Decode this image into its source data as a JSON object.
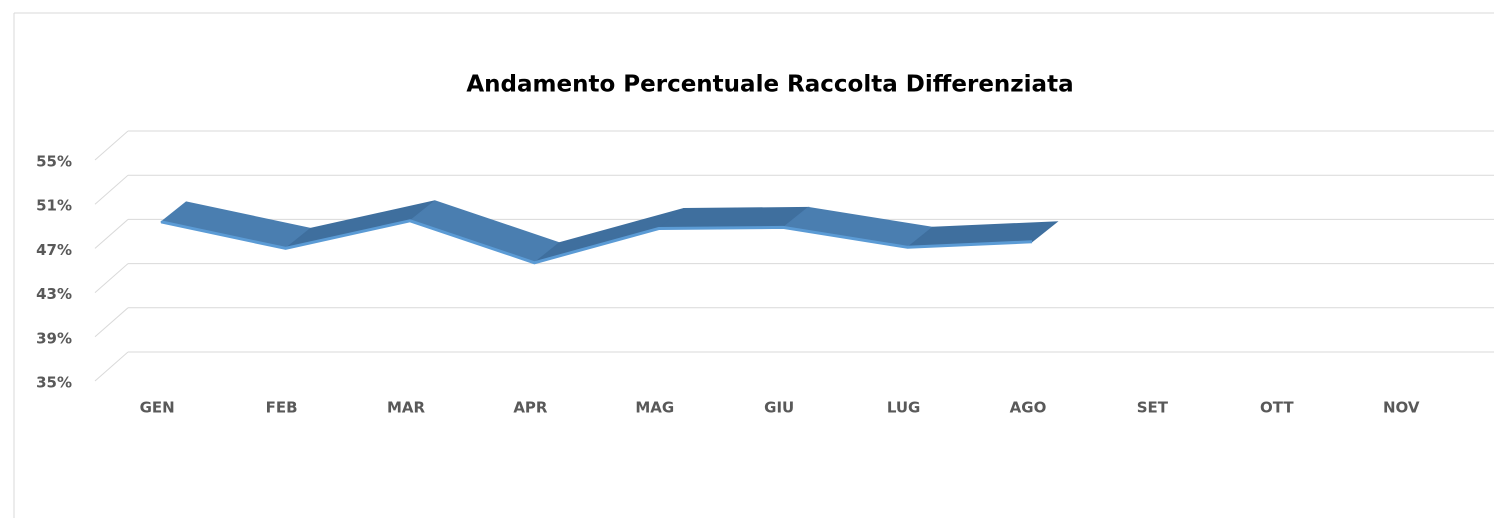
{
  "chart_data": {
    "type": "line3d",
    "title": "Andamento Percentuale Raccolta Differenziata",
    "categories": [
      "GEN",
      "FEB",
      "MAR",
      "APR",
      "MAG",
      "GIU",
      "LUG",
      "AGO",
      "SET",
      "OTT",
      "NOV"
    ],
    "values": [
      49.4,
      47.0,
      49.5,
      45.7,
      48.8,
      48.9,
      47.1,
      47.6,
      null,
      null,
      null
    ],
    "color": "#4a7eb0",
    "ylim": [
      35,
      55
    ],
    "yticks": [
      {
        "value": 35,
        "label": "35%"
      },
      {
        "value": 39,
        "label": "39%"
      },
      {
        "value": 43,
        "label": "43%"
      },
      {
        "value": 47,
        "label": "47%"
      },
      {
        "value": 51,
        "label": "51%"
      },
      {
        "value": 55,
        "label": "55%"
      }
    ],
    "grid": true
  }
}
